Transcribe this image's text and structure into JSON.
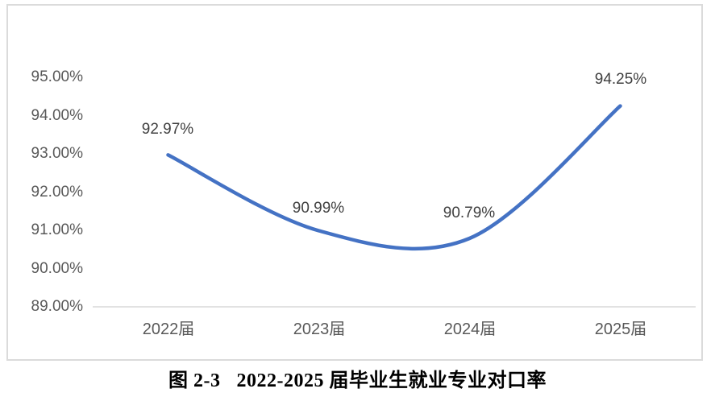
{
  "caption": {
    "figure_label": "图 2-3",
    "title": "2022-2025 届毕业生就业专业对口率"
  },
  "chart_data": {
    "type": "line",
    "title": "图 2-3 2022-2025 届毕业生就业专业对口率",
    "categories": [
      "2022届",
      "2023届",
      "2024届",
      "2025届"
    ],
    "series": [
      {
        "values": [
          92.97,
          90.99,
          90.79,
          94.25
        ],
        "color": "#4472C4",
        "smooth": true
      }
    ],
    "data_labels": [
      "92.97%",
      "90.99%",
      "90.79%",
      "94.25%"
    ],
    "ytick_labels": [
      "95.00%",
      "94.00%",
      "93.00%",
      "92.00%",
      "91.00%",
      "90.00%",
      "89.00%"
    ],
    "yticks": [
      95,
      94,
      93,
      92,
      91,
      90,
      89
    ],
    "ylim": [
      89,
      95
    ],
    "xlabel": "",
    "ylabel": "",
    "grid": false,
    "legend": "none",
    "axis_line_color": "#D9D9D9"
  }
}
